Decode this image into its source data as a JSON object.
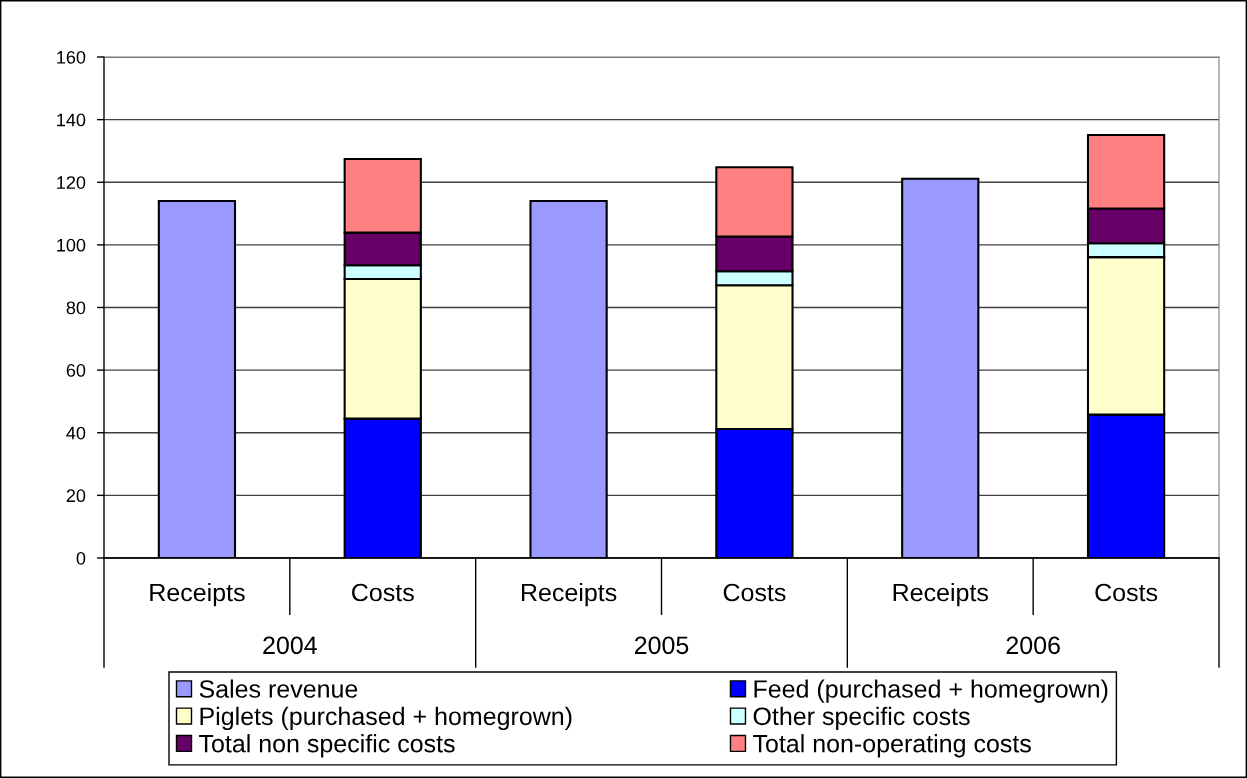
{
  "chart_data": {
    "type": "bar",
    "categories": [
      "Receipts",
      "Costs",
      "Receipts",
      "Costs",
      "Receipts",
      "Costs"
    ],
    "annotations": [
      "2004",
      "2005",
      "2006"
    ],
    "stacked": true,
    "series": [
      {
        "name": "Sales revenue",
        "color": "#9999ff",
        "values": [
          114.0,
          null,
          114.0,
          null,
          121.1,
          null
        ]
      },
      {
        "name": "Feed (purchased + homegrown)",
        "color": "#0000ff",
        "values": [
          null,
          44.5,
          null,
          41.2,
          null,
          45.8
        ]
      },
      {
        "name": "Piglets (purchased + homegrown)",
        "color": "#ffffcc",
        "values": [
          null,
          44.6,
          null,
          45.9,
          null,
          50.3
        ]
      },
      {
        "name": "Other specific costs",
        "color": "#ccffff",
        "values": [
          null,
          4.4,
          null,
          4.5,
          null,
          4.4
        ]
      },
      {
        "name": "Total non specific costs",
        "color": "#660066",
        "values": [
          null,
          10.4,
          null,
          11.1,
          null,
          11.1
        ]
      },
      {
        "name": "Total non-operating costs",
        "color": "#ff8080",
        "values": [
          null,
          23.5,
          null,
          22.1,
          null,
          23.5
        ]
      }
    ],
    "ylim": [
      0,
      160
    ],
    "yticks": [
      0,
      20,
      40,
      60,
      80,
      100,
      120,
      140,
      160
    ],
    "grid": "y",
    "legend": "bottom"
  }
}
